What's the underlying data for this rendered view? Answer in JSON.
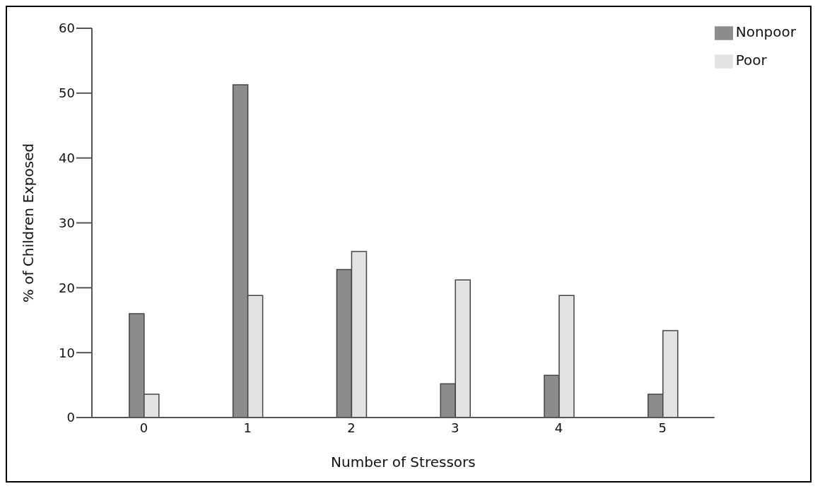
{
  "chart_data": {
    "type": "bar",
    "xlabel": "Number of Stressors",
    "ylabel": "% of Children Exposed",
    "categories": [
      "0",
      "1",
      "2",
      "3",
      "4",
      "5"
    ],
    "series": [
      {
        "name": "Nonpoor",
        "color": "#8c8c8c",
        "values": [
          16,
          51.3,
          22.8,
          5.2,
          6.5,
          3.6
        ]
      },
      {
        "name": "Poor",
        "color": "#e3e3e3",
        "values": [
          3.6,
          18.8,
          25.6,
          21.2,
          18.8,
          13.4
        ]
      }
    ],
    "ylim": [
      0,
      60
    ],
    "yticks": [
      0,
      10,
      20,
      30,
      40,
      50,
      60
    ],
    "grid": false,
    "legend": "top right"
  }
}
